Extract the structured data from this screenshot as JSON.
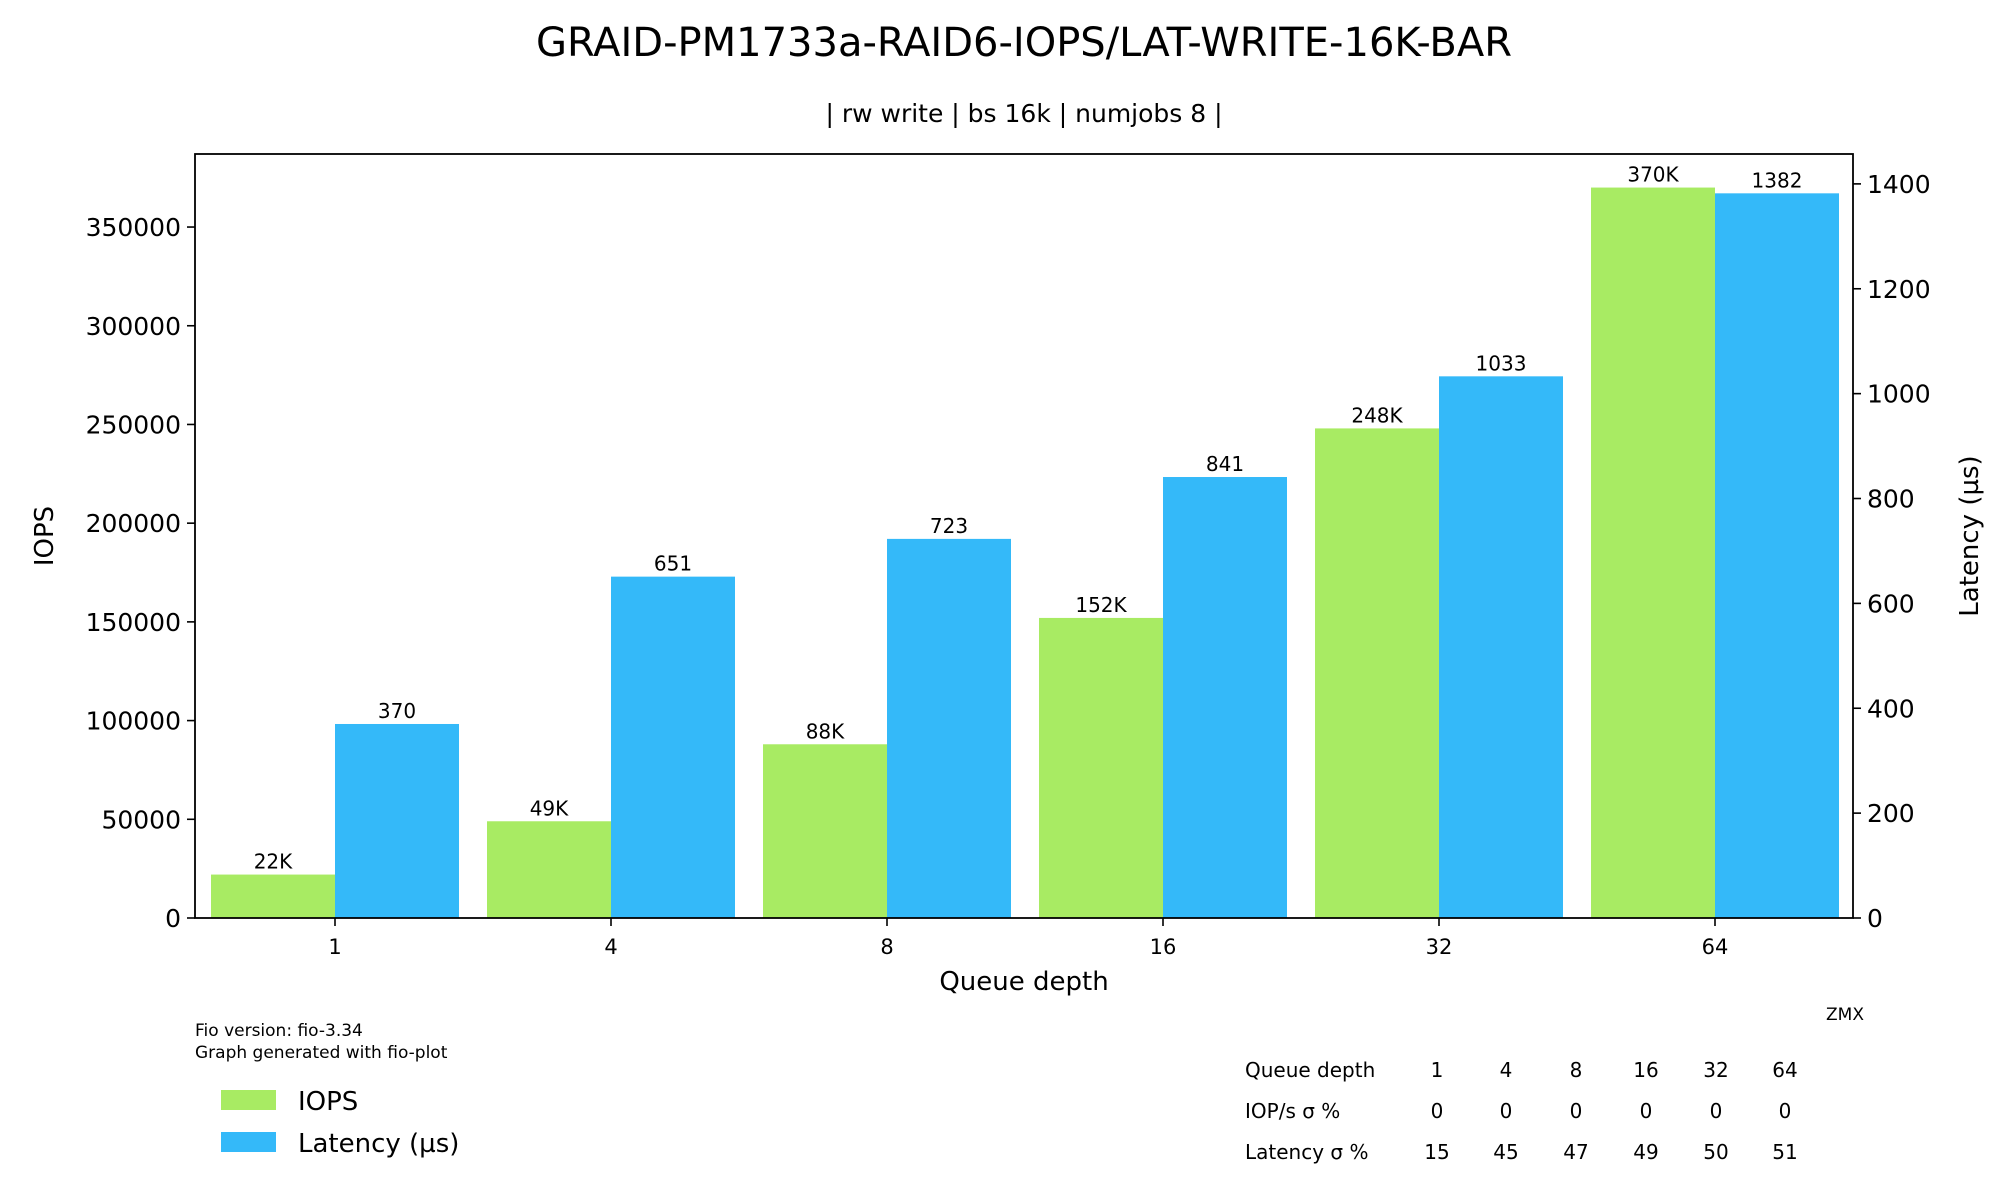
{
  "chart_data": {
    "type": "bar",
    "title": "GRAID-PM1733a-RAID6-IOPS/LAT-WRITE-16K-BAR",
    "subtitle": "| rw write | bs 16k | numjobs 8 |",
    "xlabel": "Queue depth",
    "ylabel": "IOPS",
    "y2label": "Latency (µs)",
    "categories": [
      "1",
      "4",
      "8",
      "16",
      "32",
      "64"
    ],
    "ylim": [
      0,
      387000
    ],
    "y2lim": [
      0,
      1457
    ],
    "yticks": [
      "0",
      "50000",
      "100000",
      "150000",
      "200000",
      "250000",
      "300000",
      "350000"
    ],
    "y2ticks": [
      "0",
      "200",
      "400",
      "600",
      "800",
      "1000",
      "1200",
      "1400"
    ],
    "grid": false,
    "legend_position": "bottom-left",
    "series": [
      {
        "name": "IOPS",
        "axis": "left",
        "color": "#a8eb63",
        "values": [
          22000,
          49000,
          88000,
          152000,
          248000,
          370000
        ],
        "labels": [
          "22K",
          "49K",
          "88K",
          "152K",
          "248K",
          "370K"
        ]
      },
      {
        "name": "Latency (µs)",
        "axis": "right",
        "color": "#34b9f9",
        "values": [
          370,
          651,
          723,
          841,
          1033,
          1382
        ],
        "labels": [
          "370",
          "651",
          "723",
          "841",
          "1033",
          "1382"
        ]
      }
    ]
  },
  "footer": {
    "fio_version": "Fio version: fio-3.34",
    "generated": "Graph generated with fio-plot",
    "author": "ZMX"
  },
  "legend": {
    "items": [
      "IOPS",
      "Latency (µs)"
    ]
  },
  "stats_table": {
    "rows": [
      {
        "label": "Queue depth",
        "cells": [
          "1",
          "4",
          "8",
          "16",
          "32",
          "64"
        ]
      },
      {
        "label": "IOP/s σ %",
        "cells": [
          "0",
          "0",
          "0",
          "0",
          "0",
          "0"
        ]
      },
      {
        "label": "Latency σ %",
        "cells": [
          "15",
          "45",
          "47",
          "49",
          "50",
          "51"
        ]
      }
    ]
  }
}
